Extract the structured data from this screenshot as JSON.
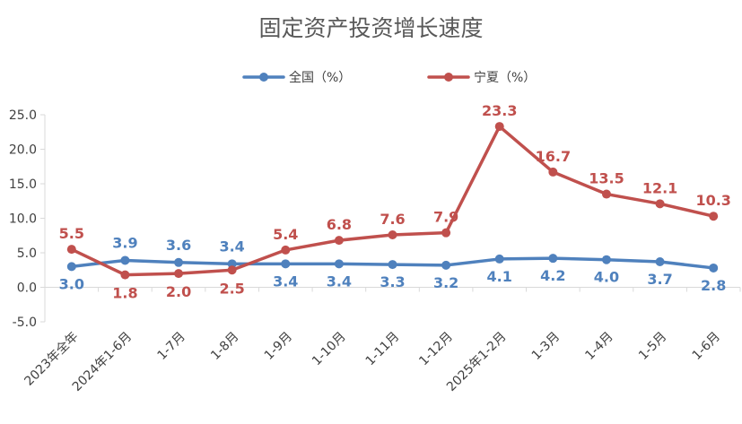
{
  "chart_data": {
    "type": "line",
    "title": "固定资产投资增长速度",
    "categories": [
      "2023年全年",
      "2024年1-6月",
      "1-7月",
      "1-8月",
      "1-9月",
      "1-10月",
      "1-11月",
      "1-12月",
      "2025年1-2月",
      "1-3月",
      "1-4月",
      "1-5月",
      "1-6月"
    ],
    "series": [
      {
        "name": "全国（%）",
        "color": "#4F81BD",
        "values": [
          3.0,
          3.9,
          3.6,
          3.4,
          3.4,
          3.4,
          3.3,
          3.2,
          4.1,
          4.2,
          4.0,
          3.7,
          2.8
        ],
        "labels": [
          "3.0",
          "3.9",
          "3.6",
          "3.4",
          "3.4",
          "3.4",
          "3.3",
          "3.2",
          "4.1",
          "4.2",
          "4.0",
          "3.7",
          "2.8"
        ]
      },
      {
        "name": "宁夏（%）",
        "color": "#C0504D",
        "values": [
          5.5,
          1.8,
          2.0,
          2.5,
          5.4,
          6.8,
          7.6,
          7.9,
          23.3,
          16.7,
          13.5,
          12.1,
          10.3
        ],
        "labels": [
          "5.5",
          "1.8",
          "2.0",
          "2.5",
          "5.4",
          "6.8",
          "7.6",
          "7.9",
          "23.3",
          "16.7",
          "13.5",
          "12.1",
          "10.3"
        ]
      }
    ],
    "ylim": [
      -5.0,
      25.0
    ],
    "yticks": [
      "-5.0",
      "0.0",
      "5.0",
      "10.0",
      "15.0",
      "20.0",
      "25.0"
    ],
    "grid": false,
    "legend": "top-center"
  }
}
